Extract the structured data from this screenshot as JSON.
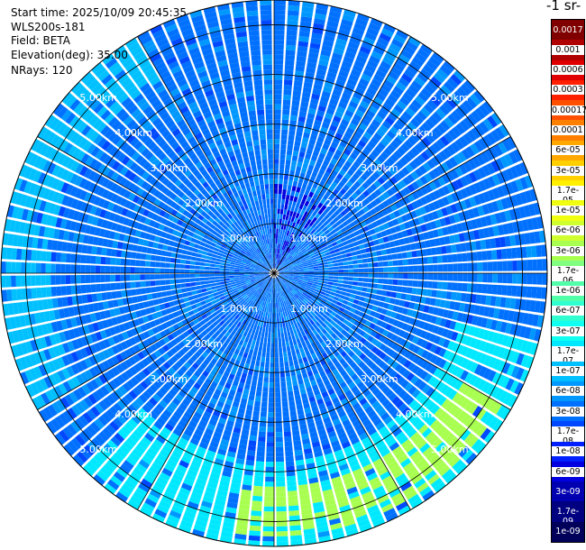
{
  "info": {
    "start_time": "Start time: 2025/10/09 20:45:35",
    "station": "WLS200s-181",
    "field": "Field: BETA",
    "elevation": "Elevation(deg): 35.00",
    "nrays": "NRays: 120"
  },
  "units_label": "-1 sr-",
  "chart_data": {
    "type": "heatmap",
    "projection": "polar-ppi",
    "field": "BETA",
    "nrays": 120,
    "range_unit": "km",
    "range_max_km": 5.5,
    "range_rings_km": [
      1,
      2,
      3,
      4,
      5
    ],
    "range_labels": [
      "1.00km",
      "2.00km",
      "3.00km",
      "4.00km",
      "5.00km"
    ],
    "azimuth_lines_deg": [
      0,
      30,
      60,
      90,
      120,
      150,
      180,
      210,
      240,
      270,
      300,
      330
    ],
    "colorbar": {
      "ticks": [
        "0.0017",
        "0.001",
        "0.0006",
        "0.0003",
        "0.00017",
        "0.0001",
        "6e-05",
        "3e-05",
        "1.7e-05",
        "1e-05",
        "6e-06",
        "3e-06",
        "1.7e-06",
        "1e-06",
        "6e-07",
        "3e-07",
        "1.7e-07",
        "1e-07",
        "6e-08",
        "3e-08",
        "1.7e-08",
        "1e-08",
        "6e-09",
        "3e-09",
        "1.7e-09",
        "1e-09"
      ],
      "colors": [
        "#800000",
        "#b00000",
        "#e00000",
        "#ff2000",
        "#ff5000",
        "#ff8000",
        "#ffa800",
        "#ffd000",
        "#fff000",
        "#f0ff10",
        "#d0ff30",
        "#a8ff50",
        "#80ff80",
        "#50ffa8",
        "#30ffd0",
        "#10fff0",
        "#00e8ff",
        "#00c0ff",
        "#0098ff",
        "#0070ff",
        "#0048ff",
        "#0020ff",
        "#0000e0",
        "#0000b0",
        "#000080",
        "#00005a"
      ]
    },
    "regions": [
      {
        "description": "enhanced backscatter (~1e-07 to 1.7e-06)",
        "azimuth_deg_from": 105,
        "azimuth_deg_to": 225,
        "range_km_from": 3.8,
        "range_km_to": 5.5,
        "value": "1.7e-07"
      },
      {
        "description": "strongest backscatter (~3e-06)",
        "azimuth_deg_from": 120,
        "azimuth_deg_to": 190,
        "range_km_from": 4.3,
        "range_km_to": 5.3,
        "value": "3e-06"
      },
      {
        "description": "outer western ring (~1e-07)",
        "azimuth_deg_from": 240,
        "azimuth_deg_to": 330,
        "range_km_from": 4.5,
        "range_km_to": 5.5,
        "value": "1e-07"
      },
      {
        "description": "background (~3e-08)",
        "azimuth_deg_from": 0,
        "azimuth_deg_to": 360,
        "range_km_from": 0,
        "range_km_to": 5.5,
        "value": "3e-08"
      },
      {
        "description": "weak near-field returns (~6e-09)",
        "azimuth_deg_from": 0,
        "azimuth_deg_to": 40,
        "range_km_from": 0.1,
        "range_km_to": 1.8,
        "value": "6e-09"
      }
    ]
  }
}
